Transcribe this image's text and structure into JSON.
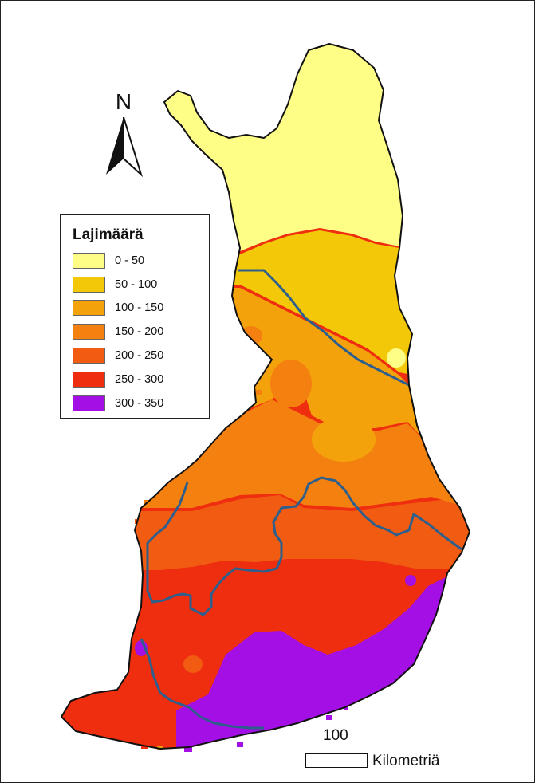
{
  "legend": {
    "title": "Lajimäärä",
    "classes": [
      {
        "label": "0 - 50",
        "color": "#fefd86"
      },
      {
        "label": "50 - 100",
        "color": "#f3c809"
      },
      {
        "label": "100 - 150",
        "color": "#f4a20c"
      },
      {
        "label": "150 - 200",
        "color": "#f48010"
      },
      {
        "label": "200 - 250",
        "color": "#f15c12"
      },
      {
        "label": "250 - 300",
        "color": "#ee2e0e"
      },
      {
        "label": "300 - 350",
        "color": "#a30fe5"
      }
    ]
  },
  "north_arrow": {
    "letter": "N"
  },
  "scale": {
    "value": "100",
    "unit": "Kilometriä"
  },
  "colors": {
    "boundary": "#2e5f8c",
    "coastline": "#111111",
    "frame": "#222222"
  }
}
